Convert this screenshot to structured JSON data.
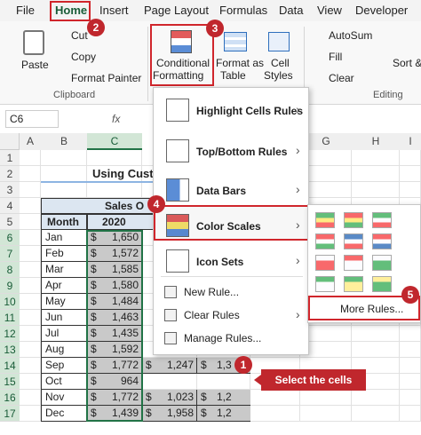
{
  "tabs": [
    "File",
    "Home",
    "Insert",
    "Page Layout",
    "Formulas",
    "Data",
    "View",
    "Developer"
  ],
  "clipboard": {
    "paste": "Paste",
    "cut": "Cut",
    "copy": "Copy",
    "format_painter": "Format Painter",
    "label": "Clipboard"
  },
  "styles": {
    "conditional_formatting": [
      "Conditional",
      "Formatting"
    ],
    "format_as_table": [
      "Format as",
      "Table"
    ],
    "cell_styles": [
      "Cell",
      "Styles"
    ]
  },
  "editing": {
    "autosum": "AutoSum",
    "fill": "Fill",
    "clear": "Clear",
    "sort": "Sort &",
    "label": "Editing"
  },
  "formula_bar": {
    "name_box": "C6",
    "fx": "fx"
  },
  "columns": [
    "A",
    "B",
    "C",
    "G",
    "H",
    "I"
  ],
  "rows": [
    "1",
    "2",
    "3",
    "4",
    "5",
    "6",
    "7",
    "8",
    "9",
    "10",
    "11",
    "12",
    "13",
    "14",
    "15",
    "16",
    "17"
  ],
  "sheet": {
    "title": "Using Custom",
    "table_header": "Sales O",
    "month_header": "Month",
    "year_header": "2020",
    "currency": "$",
    "months": [
      "Jan",
      "Feb",
      "Mar",
      "Apr",
      "May",
      "Jun",
      "Jul",
      "Aug",
      "Sep",
      "Oct",
      "Nov",
      "Dec"
    ],
    "values_2020": [
      "1,650",
      "1,572",
      "1,585",
      "1,580",
      "1,484",
      "1,463",
      "1,435",
      "1,592",
      "1,772",
      "964",
      "1,772",
      "1,439"
    ],
    "values_2021": [
      null,
      null,
      null,
      null,
      null,
      null,
      null,
      null,
      "1,247",
      null,
      "1,023",
      "1,958"
    ],
    "values_2022": [
      null,
      null,
      null,
      null,
      null,
      null,
      null,
      null,
      "1,3",
      null,
      "1,2",
      "1,2"
    ]
  },
  "menu": {
    "items": [
      "Highlight Cells Rules",
      "Top/Bottom Rules",
      "Data Bars",
      "Color Scales",
      "Icon Sets",
      "New Rule...",
      "Clear Rules",
      "Manage Rules..."
    ]
  },
  "submenu": {
    "more_rules": "More Rules..."
  },
  "badges": [
    "1",
    "2",
    "3",
    "4",
    "5"
  ],
  "callout": "Select the cells"
}
